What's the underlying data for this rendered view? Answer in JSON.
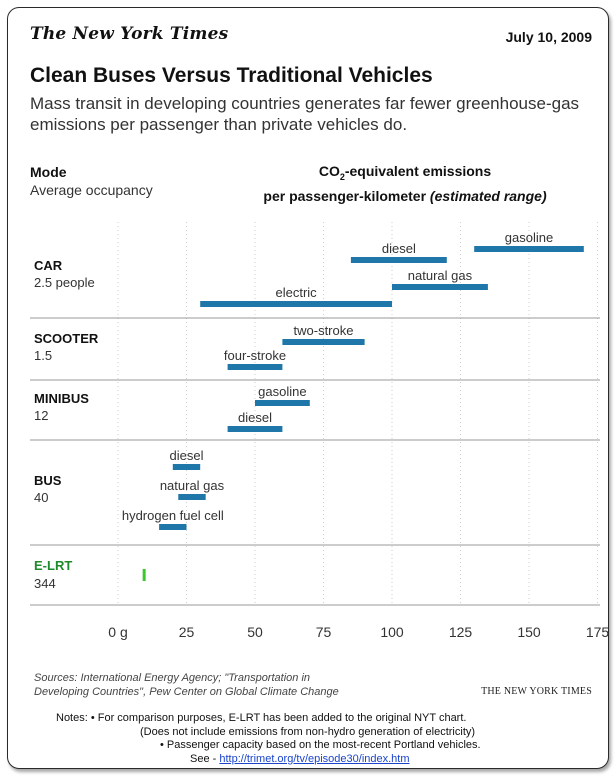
{
  "masthead": "The New York Times",
  "date": "July 10, 2009",
  "title": "Clean Buses Versus Traditional Vehicles",
  "subtitle": "Mass transit in developing countries generates far fewer greenhouse-gas emissions per passenger than private vehicles do.",
  "header": {
    "mode": "Mode",
    "occupancy": "Average occupancy",
    "metric_line1_a": "CO",
    "metric_line1_sub": "2",
    "metric_line1_b": "-equivalent emissions",
    "metric_line2_a": "per passenger-kilometer ",
    "metric_line2_b": "(estimated range)"
  },
  "chart_data": {
    "type": "range-bar",
    "x": {
      "ticks": [
        0,
        25,
        50,
        75,
        100,
        125,
        150,
        175
      ],
      "tick_labels": [
        "0 g",
        "25",
        "50",
        "75",
        "100",
        "125",
        "150",
        "175"
      ]
    },
    "bar_color": "#1f76a8",
    "highlight_color": "#39c92a",
    "groups": [
      {
        "mode": "CAR",
        "occupancy": "2.5 people",
        "bars": [
          {
            "label": "gasoline",
            "min": 130,
            "max": 170
          },
          {
            "label": "diesel",
            "min": 85,
            "max": 120
          },
          {
            "label": "natural gas",
            "min": 100,
            "max": 135
          },
          {
            "label": "electric",
            "min": 30,
            "max": 100
          }
        ]
      },
      {
        "mode": "SCOOTER",
        "occupancy": "1.5",
        "bars": [
          {
            "label": "two-stroke",
            "min": 60,
            "max": 90
          },
          {
            "label": "four-stroke",
            "min": 40,
            "max": 60
          }
        ]
      },
      {
        "mode": "MINIBUS",
        "occupancy": "12",
        "bars": [
          {
            "label": "gasoline",
            "min": 50,
            "max": 70
          },
          {
            "label": "diesel",
            "min": 40,
            "max": 60
          }
        ]
      },
      {
        "mode": "BUS",
        "occupancy": "40",
        "bars": [
          {
            "label": "diesel",
            "min": 20,
            "max": 30
          },
          {
            "label": "natural gas",
            "min": 22,
            "max": 32
          },
          {
            "label": "hydrogen fuel cell",
            "min": 15,
            "max": 25
          }
        ]
      },
      {
        "mode": "E-LRT",
        "occupancy": "344",
        "highlight": true,
        "bars": [
          {
            "label": "",
            "min": 9,
            "max": 10
          }
        ]
      }
    ]
  },
  "sources": {
    "line1": "Sources: International Energy Agency; \"Transportation in",
    "line2": "Developing Countries\", Pew Center on Global Climate Change"
  },
  "credit": "THE NEW YORK TIMES",
  "notes": {
    "line1": "Notes: •  For comparison purposes, E-LRT has been added to the original NYT chart.",
    "line2": "(Does not include emissions from non-hydro generation of electricity)",
    "line3": "• Passenger capacity based on the most-recent Portland vehicles.",
    "line4_prefix": "See -  ",
    "link": "http://trimet.org/tv/episode30/index.htm"
  }
}
